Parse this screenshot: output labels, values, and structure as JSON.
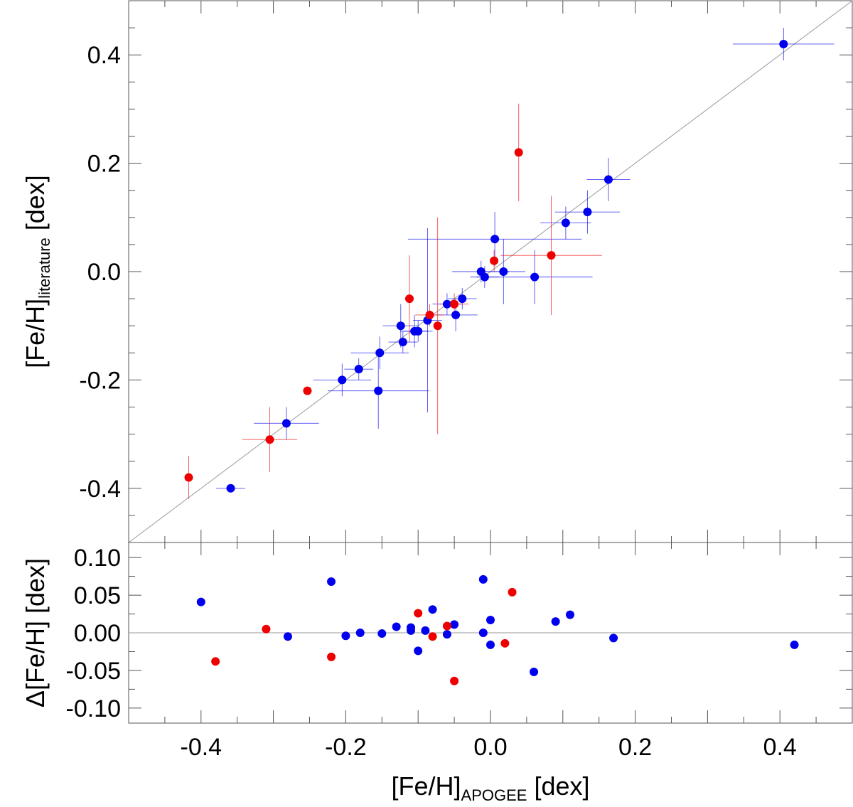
{
  "chart_data": [
    {
      "type": "scatter",
      "panel": "main",
      "xlabel": {
        "main": "[Fe/H]",
        "sub": "APOGEE",
        "unit": " [dex]"
      },
      "ylabel": {
        "main": "[Fe/H]",
        "sub": "literature",
        "unit": " [dex]"
      },
      "xlim": [
        -0.5,
        0.5
      ],
      "ylim": [
        -0.5,
        0.5
      ],
      "x_ticks": [
        "-0.4",
        "-0.2",
        "0.0",
        "0.2",
        "0.4"
      ],
      "y_ticks": [
        "-0.4",
        "-0.2",
        "0.0",
        "0.2",
        "0.4"
      ],
      "reference_line": "one-to-one",
      "colors": {
        "blue": "#0000ee",
        "red": "#ee0000"
      },
      "series": [
        {
          "name": "blue",
          "points": [
            {
              "x": -0.359,
              "y": -0.4,
              "xerr": 0.02,
              "yerr": 0.0
            },
            {
              "x": -0.282,
              "y": -0.28,
              "xerr": 0.045,
              "yerr": 0.03
            },
            {
              "x": -0.205,
              "y": -0.2,
              "xerr": 0.04,
              "yerr": 0.03
            },
            {
              "x": -0.182,
              "y": -0.18,
              "xerr": 0.02,
              "yerr": 0.02
            },
            {
              "x": -0.153,
              "y": -0.15,
              "xerr": 0.04,
              "yerr": 0.03
            },
            {
              "x": -0.155,
              "y": -0.22,
              "xerr": 0.07,
              "yerr": 0.07
            },
            {
              "x": -0.124,
              "y": -0.1,
              "xerr": 0.025,
              "yerr": 0.04
            },
            {
              "x": -0.121,
              "y": -0.13,
              "xerr": 0.02,
              "yerr": 0.02
            },
            {
              "x": -0.105,
              "y": -0.11,
              "xerr": 0.02,
              "yerr": 0.03
            },
            {
              "x": -0.1,
              "y": -0.11,
              "xerr": 0.02,
              "yerr": 0.02
            },
            {
              "x": -0.087,
              "y": -0.09,
              "xerr": 0.02,
              "yerr": 0.17
            },
            {
              "x": -0.06,
              "y": -0.06,
              "xerr": 0.02,
              "yerr": 0.02
            },
            {
              "x": -0.048,
              "y": -0.08,
              "xerr": 0.03,
              "yerr": 0.03
            },
            {
              "x": -0.039,
              "y": -0.05,
              "xerr": 0.02,
              "yerr": 0.02
            },
            {
              "x": -0.013,
              "y": 0.0,
              "xerr": 0.04,
              "yerr": 0.02
            },
            {
              "x": -0.008,
              "y": -0.01,
              "xerr": 0.02,
              "yerr": 0.02
            },
            {
              "x": 0.006,
              "y": 0.06,
              "xerr": 0.12,
              "yerr": 0.05
            },
            {
              "x": 0.018,
              "y": 0.0,
              "xerr": 0.03,
              "yerr": 0.06
            },
            {
              "x": 0.061,
              "y": -0.01,
              "xerr": 0.08,
              "yerr": 0.05
            },
            {
              "x": 0.104,
              "y": 0.09,
              "xerr": 0.035,
              "yerr": 0.03
            },
            {
              "x": 0.134,
              "y": 0.11,
              "xerr": 0.045,
              "yerr": 0.04
            },
            {
              "x": 0.163,
              "y": 0.17,
              "xerr": 0.03,
              "yerr": 0.04
            },
            {
              "x": 0.405,
              "y": 0.42,
              "xerr": 0.07,
              "yerr": 0.03
            }
          ]
        },
        {
          "name": "red",
          "points": [
            {
              "x": -0.417,
              "y": -0.38,
              "xerr": 0.0,
              "yerr": 0.04
            },
            {
              "x": -0.305,
              "y": -0.31,
              "xerr": 0.038,
              "yerr": 0.06
            },
            {
              "x": -0.253,
              "y": -0.22,
              "xerr": 0.005,
              "yerr": 0.0
            },
            {
              "x": -0.112,
              "y": -0.05,
              "xerr": 0.0,
              "yerr": 0.08
            },
            {
              "x": -0.084,
              "y": -0.08,
              "xerr": 0.02,
              "yerr": 0.02
            },
            {
              "x": -0.073,
              "y": -0.1,
              "xerr": 0.0,
              "yerr": 0.2
            },
            {
              "x": -0.05,
              "y": -0.06,
              "xerr": 0.02,
              "yerr": 0.02
            },
            {
              "x": 0.005,
              "y": 0.02,
              "xerr": 0.0,
              "yerr": 0.02
            },
            {
              "x": 0.039,
              "y": 0.22,
              "xerr": 0.0,
              "yerr": 0.09
            },
            {
              "x": 0.084,
              "y": 0.03,
              "xerr": 0.07,
              "yerr": 0.11
            }
          ]
        }
      ]
    },
    {
      "type": "scatter",
      "panel": "residual",
      "xlabel": {
        "main": "[Fe/H]",
        "sub": "APOGEE",
        "unit": " [dex]"
      },
      "ylabel": {
        "main": "Δ[Fe/H]",
        "unit": " [dex]"
      },
      "xlim": [
        -0.5,
        0.5
      ],
      "ylim": [
        -0.12,
        0.12
      ],
      "x_ticks": [
        "-0.4",
        "-0.2",
        "0.0",
        "0.2",
        "0.4"
      ],
      "y_ticks": [
        "-0.10",
        "-0.05",
        "0.00",
        "0.05",
        "0.10"
      ],
      "reference_line": "zero",
      "series": [
        {
          "name": "blue",
          "points": [
            {
              "x": -0.4,
              "y": 0.041
            },
            {
              "x": -0.28,
              "y": -0.005
            },
            {
              "x": -0.22,
              "y": 0.068
            },
            {
              "x": -0.2,
              "y": -0.004
            },
            {
              "x": -0.18,
              "y": 0.0
            },
            {
              "x": -0.15,
              "y": -0.001
            },
            {
              "x": -0.13,
              "y": 0.008
            },
            {
              "x": -0.11,
              "y": 0.007
            },
            {
              "x": -0.11,
              "y": 0.003
            },
            {
              "x": -0.1,
              "y": -0.024
            },
            {
              "x": -0.09,
              "y": 0.003
            },
            {
              "x": -0.08,
              "y": 0.031
            },
            {
              "x": -0.06,
              "y": -0.002
            },
            {
              "x": -0.05,
              "y": 0.011
            },
            {
              "x": -0.01,
              "y": 0.071
            },
            {
              "x": -0.01,
              "y": 0.0
            },
            {
              "x": 0.0,
              "y": 0.017
            },
            {
              "x": 0.0,
              "y": -0.016
            },
            {
              "x": 0.06,
              "y": -0.052
            },
            {
              "x": 0.09,
              "y": 0.015
            },
            {
              "x": 0.11,
              "y": 0.024
            },
            {
              "x": 0.17,
              "y": -0.007
            },
            {
              "x": 0.42,
              "y": -0.016
            }
          ]
        },
        {
          "name": "red",
          "points": [
            {
              "x": -0.38,
              "y": -0.038
            },
            {
              "x": -0.31,
              "y": 0.005
            },
            {
              "x": -0.22,
              "y": -0.032
            },
            {
              "x": -0.1,
              "y": 0.026
            },
            {
              "x": -0.08,
              "y": -0.005
            },
            {
              "x": -0.06,
              "y": 0.009
            },
            {
              "x": -0.05,
              "y": -0.064
            },
            {
              "x": 0.02,
              "y": -0.014
            },
            {
              "x": 0.03,
              "y": 0.054
            }
          ]
        }
      ]
    }
  ]
}
